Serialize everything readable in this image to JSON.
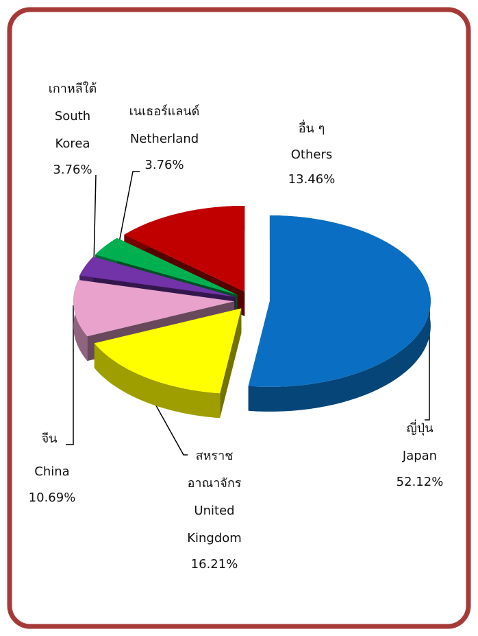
{
  "chart_data": {
    "type": "pie3d",
    "categories": [
      [
        "ญี่ปุ่น",
        "Japan"
      ],
      [
        "สหราช",
        "อาณาจักร",
        "United",
        "Kingdom"
      ],
      [
        "จีน",
        "China"
      ],
      [
        "เกาหลีใต้",
        "South",
        "Korea"
      ],
      [
        "เนเธอร์แลนด์",
        "Netherland"
      ],
      [
        "อื่น ๆ",
        "Others"
      ]
    ],
    "values": [
      52.12,
      16.21,
      10.69,
      3.76,
      3.76,
      13.46
    ],
    "value_labels": [
      "52.12%",
      "16.21%",
      "10.69%",
      "3.76%",
      "3.76%",
      "13.46%"
    ],
    "colors": [
      "#0a6fc2",
      "#ffff00",
      "#e8a2cc",
      "#7232a8",
      "#00b050",
      "#c00000"
    ]
  }
}
